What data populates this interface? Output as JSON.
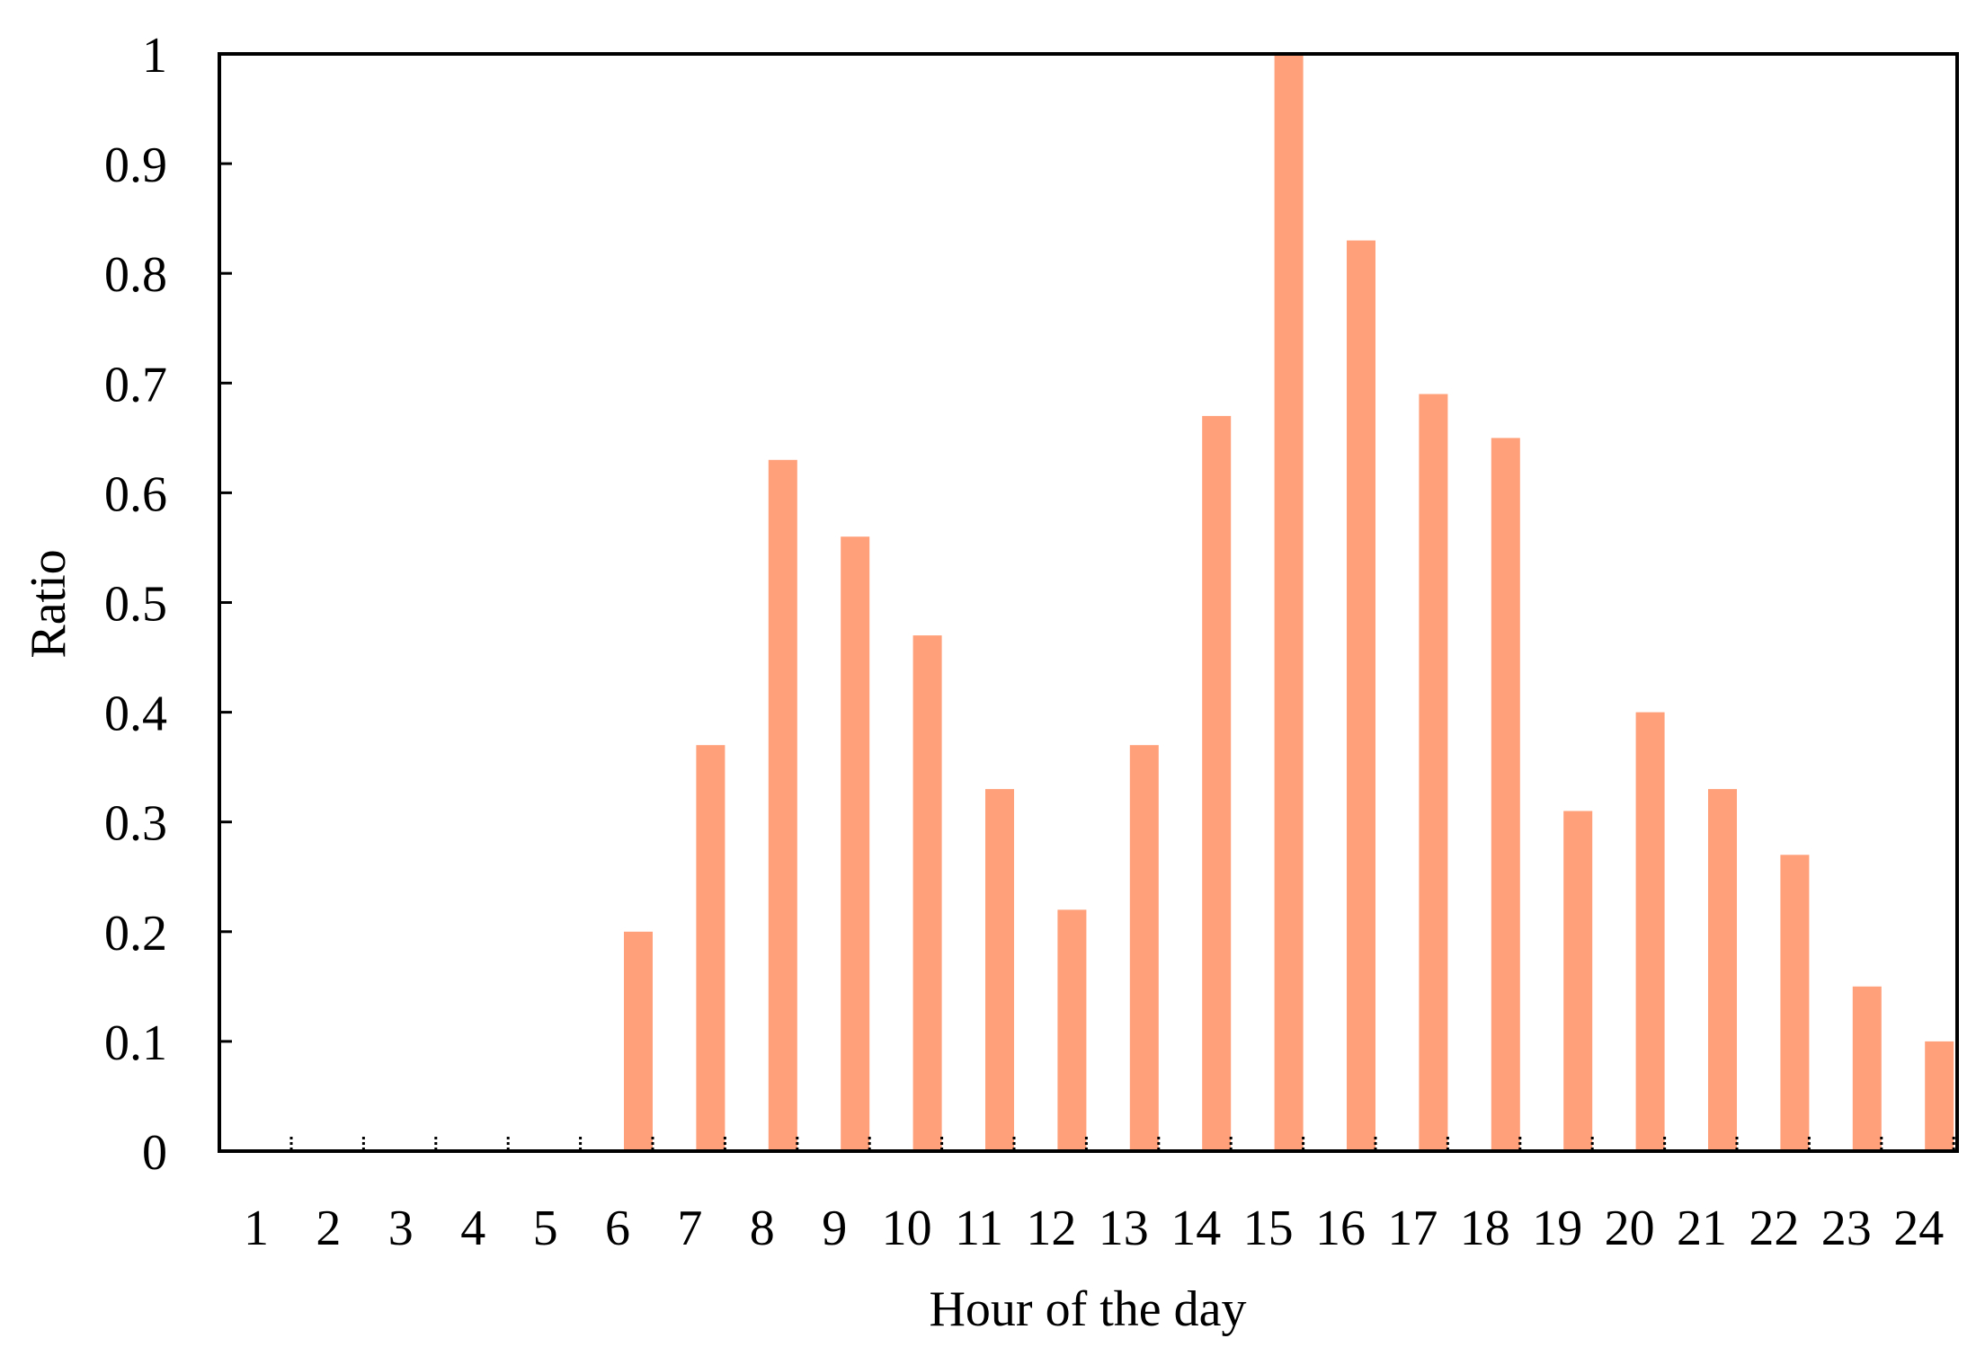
{
  "chart_data": {
    "type": "bar",
    "title": "",
    "xlabel": "Hour of the day",
    "ylabel": "Ratio",
    "ylim": [
      0,
      1
    ],
    "yticks": [
      "0",
      "0.1",
      "0.2",
      "0.3",
      "0.4",
      "0.5",
      "0.6",
      "0.7",
      "0.8",
      "0.9",
      "1"
    ],
    "categories": [
      "1",
      "2",
      "3",
      "4",
      "5",
      "6",
      "7",
      "8",
      "9",
      "10",
      "11",
      "12",
      "13",
      "14",
      "15",
      "16",
      "17",
      "18",
      "19",
      "20",
      "21",
      "22",
      "23",
      "24"
    ],
    "values": [
      0,
      0,
      0,
      0,
      0,
      0.2,
      0.37,
      0.63,
      0.56,
      0.47,
      0.33,
      0.22,
      0.37,
      0.67,
      1.0,
      0.83,
      0.69,
      0.65,
      0.31,
      0.4,
      0.33,
      0.27,
      0.15,
      0.1
    ],
    "bar_color": "#FFA07A",
    "grid": false,
    "legend": "none"
  }
}
